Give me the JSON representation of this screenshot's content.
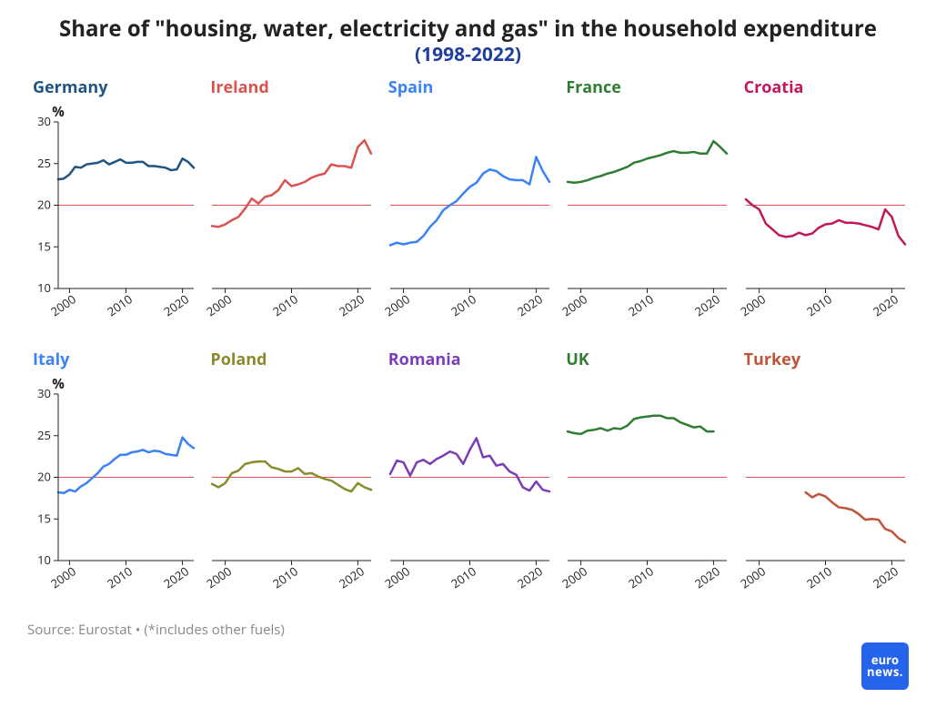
{
  "title_line1": "Share of \"housing, water, electricity and gas\" in the household expenditure",
  "title_line2": "(1998-2022)",
  "title_line2_color": "#1f3e9e",
  "footer_text": "Source: Eurostat • (*includes other fuels)",
  "logo_bg": "#2563eb",
  "logo_line1": "euro",
  "logo_line2": "news.",
  "chart": {
    "type": "small-multiples-line",
    "x_start": 1998,
    "x_end": 2022,
    "xticks": [
      2000,
      2010,
      2020
    ],
    "ylim": [
      10,
      30
    ],
    "yticks": [
      10,
      15,
      20,
      25,
      30
    ],
    "y_axis_label": "%",
    "reference_line_y": 20,
    "reference_line_color": "#d9534f",
    "axis_color": "#222",
    "axis_width": 1,
    "line_width": 2.5,
    "tick_font_size": 13,
    "tick_color": "#222",
    "background": "#ffffff",
    "panels": [
      {
        "name": "Germany",
        "color": "#1f5582",
        "show_y_axis": true,
        "values": [
          23.1,
          23.2,
          23.7,
          24.6,
          24.5,
          24.9,
          25.0,
          25.1,
          25.4,
          24.9,
          25.2,
          25.5,
          25.1,
          25.1,
          25.2,
          25.2,
          24.7,
          24.7,
          24.6,
          24.5,
          24.2,
          24.3,
          25.6,
          25.2,
          24.5
        ]
      },
      {
        "name": "Ireland",
        "color": "#d9534f",
        "show_y_axis": false,
        "values": [
          17.5,
          17.4,
          17.7,
          18.2,
          18.6,
          19.6,
          20.8,
          20.2,
          21.0,
          21.2,
          21.8,
          23.0,
          22.3,
          22.5,
          22.8,
          23.3,
          23.6,
          23.8,
          24.9,
          24.7,
          24.7,
          24.5,
          27.0,
          27.8,
          26.2
        ]
      },
      {
        "name": "Spain",
        "color": "#3b82f6",
        "show_y_axis": false,
        "values": [
          15.2,
          15.5,
          15.3,
          15.5,
          15.6,
          16.3,
          17.4,
          18.2,
          19.4,
          20.0,
          20.5,
          21.4,
          22.2,
          22.7,
          23.8,
          24.3,
          24.1,
          23.5,
          23.1,
          23.0,
          23.0,
          22.5,
          25.8,
          24.1,
          22.8
        ]
      },
      {
        "name": "France",
        "color": "#2e7d32",
        "show_y_axis": false,
        "values": [
          22.8,
          22.7,
          22.8,
          23.0,
          23.3,
          23.5,
          23.8,
          24.0,
          24.3,
          24.6,
          25.1,
          25.3,
          25.6,
          25.8,
          26.0,
          26.3,
          26.5,
          26.3,
          26.3,
          26.4,
          26.2,
          26.2,
          27.7,
          27.0,
          26.2
        ]
      },
      {
        "name": "Croatia",
        "color": "#c2185b",
        "show_y_axis": false,
        "values": [
          20.7,
          20.0,
          19.5,
          17.8,
          17.1,
          16.4,
          16.2,
          16.3,
          16.7,
          16.4,
          16.6,
          17.3,
          17.7,
          17.8,
          18.2,
          17.9,
          17.9,
          17.8,
          17.6,
          17.4,
          17.1,
          19.5,
          18.6,
          16.3,
          15.3
        ]
      },
      {
        "name": "Italy",
        "color": "#3b82f6",
        "show_y_axis": true,
        "values": [
          18.2,
          18.1,
          18.5,
          18.3,
          18.9,
          19.3,
          19.9,
          20.5,
          21.3,
          21.6,
          22.2,
          22.7,
          22.7,
          23.0,
          23.1,
          23.3,
          23.0,
          23.2,
          23.1,
          22.8,
          22.7,
          22.6,
          24.8,
          24.0,
          23.5
        ]
      },
      {
        "name": "Poland",
        "color": "#8a8a2e",
        "show_y_axis": false,
        "values": [
          19.2,
          18.8,
          19.3,
          20.5,
          20.8,
          21.6,
          21.8,
          21.9,
          21.9,
          21.2,
          21.0,
          20.7,
          20.7,
          21.1,
          20.4,
          20.5,
          20.1,
          19.8,
          19.6,
          19.1,
          18.6,
          18.3,
          19.3,
          18.8,
          18.5
        ]
      },
      {
        "name": "Romania",
        "color": "#7b3db8",
        "show_y_axis": false,
        "values": [
          20.4,
          22.0,
          21.8,
          20.2,
          21.8,
          22.1,
          21.6,
          22.2,
          22.6,
          23.1,
          22.8,
          21.6,
          23.3,
          24.7,
          22.4,
          22.6,
          21.4,
          21.6,
          20.7,
          20.3,
          18.8,
          18.4,
          19.5,
          18.5,
          18.3
        ]
      },
      {
        "name": "UK",
        "color": "#2e7d32",
        "show_y_axis": false,
        "values": [
          25.5,
          25.3,
          25.2,
          25.6,
          25.7,
          25.9,
          25.6,
          25.9,
          25.8,
          26.2,
          27.0,
          27.2,
          27.3,
          27.4,
          27.4,
          27.1,
          27.1,
          26.6,
          26.3,
          26.0,
          26.1,
          25.5,
          25.5
        ]
      },
      {
        "name": "Turkey",
        "color": "#c0533b",
        "show_y_axis": false,
        "values": [
          null,
          null,
          null,
          null,
          null,
          null,
          null,
          null,
          null,
          18.2,
          17.6,
          18.0,
          17.7,
          17.0,
          16.4,
          16.3,
          16.1,
          15.6,
          14.9,
          15.0,
          14.9,
          13.8,
          13.5,
          12.7,
          12.2
        ]
      }
    ]
  }
}
